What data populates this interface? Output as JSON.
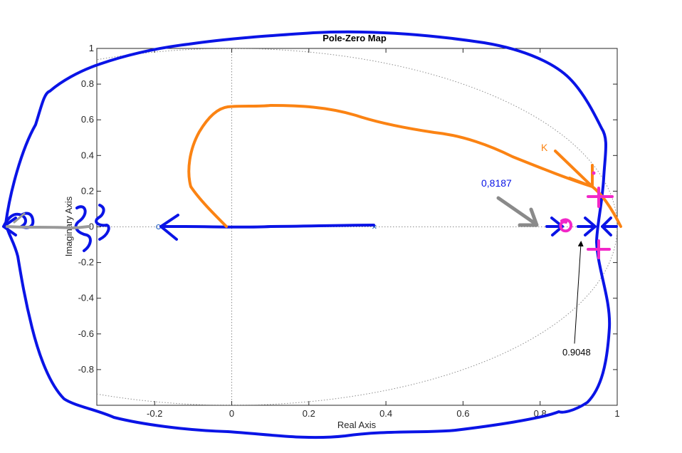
{
  "chart_data": {
    "type": "scatter",
    "title": "Pole-Zero Map",
    "xlabel": "Real Axis",
    "ylabel": "Imaginary Axis",
    "xlim": [
      -0.35,
      1.0
    ],
    "ylim": [
      -1.0,
      1.0
    ],
    "xticks": [
      -0.2,
      0,
      0.2,
      0.4,
      0.6,
      0.8,
      1
    ],
    "xtick_labels": [
      "-0.2",
      "0",
      "0.2",
      "0.4",
      "0.6",
      "0.8",
      "1"
    ],
    "yticks": [
      -0.8,
      -0.6,
      -0.4,
      -0.2,
      0,
      0.2,
      0.4,
      0.6,
      0.8,
      1
    ],
    "ytick_labels": [
      "-0.8",
      "-0.6",
      "-0.4",
      "-0.2",
      "0",
      "0.2",
      "0.4",
      "0.6",
      "0.8",
      "1"
    ],
    "grid": false,
    "unit_circle": true,
    "zeros": [
      {
        "x": -0.19,
        "y": 0
      }
    ],
    "poles": [
      {
        "x": 0.37,
        "y": 0
      }
    ],
    "annotations": {
      "k_label": "K",
      "pole_label": "0,8187",
      "zero_label": "0.9048"
    },
    "colors": {
      "ink_blue": "#0a14e6",
      "ink_orange": "#fb8313",
      "ink_magenta": "#f227c8",
      "ink_gray": "#8a8a8a",
      "marker_blue": "#1f5fbf"
    }
  }
}
